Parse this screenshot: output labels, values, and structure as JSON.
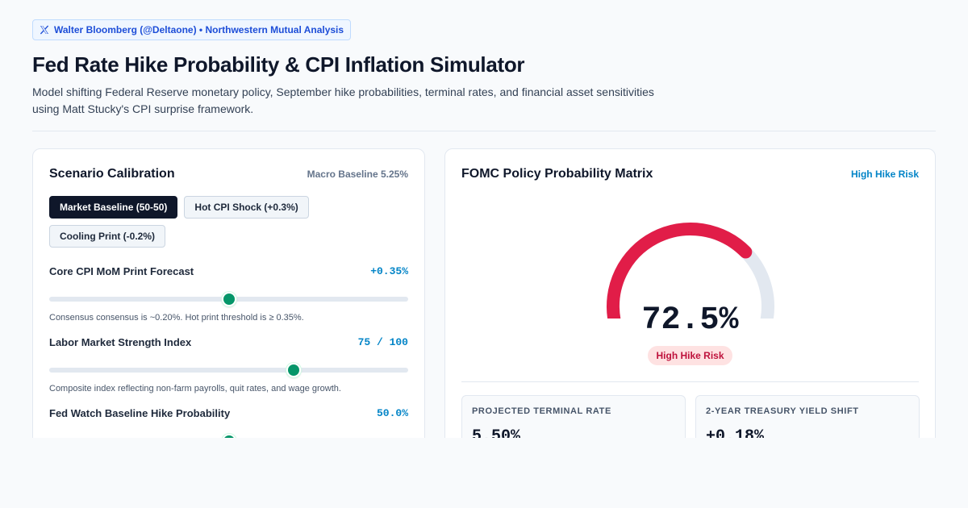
{
  "header": {
    "source": "Walter Bloomberg (@Deltaone) • Northwestern Mutual Analysis",
    "title": "Fed Rate Hike Probability & CPI Inflation Simulator",
    "subtitle": "Model shifting Federal Reserve monetary policy, September hike probabilities, terminal rates, and financial asset sensitivities using Matt Stucky's CPI surprise framework."
  },
  "calibration": {
    "title": "Scenario Calibration",
    "meta": "Macro Baseline 5.25%",
    "scenarios": [
      {
        "label": "Market Baseline (50-50)",
        "active": true
      },
      {
        "label": "Hot CPI Shock (+0.3%)",
        "active": false
      },
      {
        "label": "Cooling Print (-0.2%)",
        "active": false
      }
    ],
    "sliders": [
      {
        "label": "Core CPI MoM Print Forecast",
        "value": "+0.35%",
        "level": 0.5,
        "help": "Consensus consensus is ~0.20%. Hot print threshold is ≥ 0.35%."
      },
      {
        "label": "Labor Market Strength Index",
        "value": "75 / 100",
        "level": 0.68,
        "help": "Composite index reflecting non-farm payrolls, quit rates, and wage growth."
      },
      {
        "label": "Fed Watch Baseline Hike Probability",
        "value": "50.0%",
        "level": 0.5,
        "help": ""
      }
    ]
  },
  "matrix": {
    "title": "FOMC Policy Probability Matrix",
    "meta": "High Hike Risk",
    "gauge_value": "72.5%",
    "gauge_level": 0.725,
    "risk_label": "High Hike Risk",
    "colors": {
      "gauge_fill": "#e11d48",
      "gauge_track": "#e2e8f0"
    },
    "stats": [
      {
        "label": "PROJECTED TERMINAL RATE",
        "value": "5.50%"
      },
      {
        "label": "2-YEAR TREASURY YIELD SHIFT",
        "value": "+0.18%"
      }
    ]
  }
}
